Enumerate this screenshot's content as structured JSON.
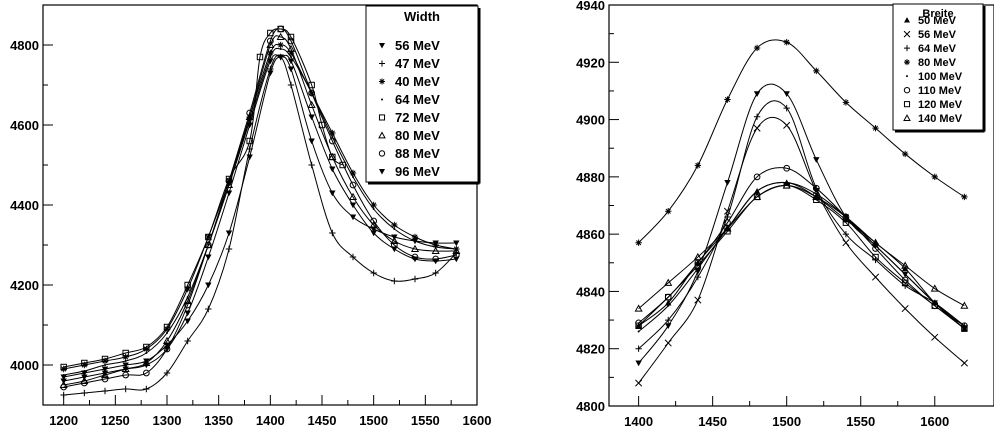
{
  "chart_data": [
    {
      "type": "line",
      "title": "",
      "xlabel": "",
      "ylabel": "",
      "xlim": [
        1180,
        1600
      ],
      "ylim": [
        3900,
        4900
      ],
      "xticks": [
        1200,
        1250,
        1300,
        1350,
        1400,
        1450,
        1500,
        1550,
        1600
      ],
      "yticks": [
        4000,
        4200,
        4400,
        4600,
        4800
      ],
      "legend": {
        "title": "Width",
        "placement": "top-right"
      },
      "series": [
        {
          "name": "56 MeV",
          "marker": "tri-down",
          "x": [
            1200,
            1220,
            1240,
            1260,
            1280,
            1300,
            1320,
            1340,
            1360,
            1380,
            1400,
            1410,
            1420,
            1440,
            1460,
            1480,
            1500,
            1520,
            1540,
            1560,
            1580
          ],
          "y": [
            3970,
            3980,
            3990,
            4000,
            4010,
            4050,
            4110,
            4200,
            4330,
            4520,
            4730,
            4770,
            4740,
            4560,
            4430,
            4370,
            4340,
            4320,
            4310,
            4305,
            4305
          ]
        },
        {
          "name": "47 MeV",
          "marker": "plus",
          "x": [
            1200,
            1220,
            1240,
            1260,
            1280,
            1300,
            1320,
            1340,
            1360,
            1380,
            1400,
            1410,
            1420,
            1440,
            1460,
            1480,
            1500,
            1520,
            1540,
            1560,
            1580
          ],
          "y": [
            3925,
            3930,
            3935,
            3940,
            3940,
            3980,
            4060,
            4140,
            4290,
            4540,
            4740,
            4770,
            4700,
            4500,
            4330,
            4270,
            4230,
            4210,
            4215,
            4230,
            4280
          ]
        },
        {
          "name": "40 MeV",
          "marker": "asterisk",
          "x": [
            1200,
            1220,
            1240,
            1260,
            1280,
            1300,
            1320,
            1340,
            1360,
            1380,
            1400,
            1410,
            1420,
            1440,
            1460,
            1480,
            1500,
            1520,
            1540,
            1560,
            1580
          ],
          "y": [
            3990,
            4000,
            4010,
            4020,
            4040,
            4090,
            4190,
            4320,
            4460,
            4620,
            4780,
            4800,
            4780,
            4680,
            4580,
            4480,
            4400,
            4350,
            4320,
            4300,
            4290
          ]
        },
        {
          "name": "64 MeV",
          "marker": "dot",
          "x": [
            1200,
            1220,
            1240,
            1260,
            1280,
            1300,
            1320,
            1340,
            1360,
            1380,
            1400,
            1410,
            1420,
            1440,
            1460,
            1480,
            1500,
            1520,
            1540,
            1560,
            1580
          ],
          "y": [
            3975,
            3985,
            4000,
            4010,
            4030,
            4080,
            4170,
            4300,
            4450,
            4610,
            4770,
            4790,
            4770,
            4680,
            4570,
            4470,
            4390,
            4340,
            4310,
            4295,
            4290
          ]
        },
        {
          "name": "72 MeV",
          "marker": "square",
          "x": [
            1200,
            1220,
            1240,
            1260,
            1280,
            1300,
            1320,
            1340,
            1360,
            1380,
            1390,
            1400,
            1410,
            1420,
            1440,
            1450,
            1460,
            1470
          ],
          "y": [
            3995,
            4005,
            4015,
            4030,
            4045,
            4095,
            4200,
            4320,
            4465,
            4560,
            4770,
            4830,
            4840,
            4820,
            4700,
            4600,
            4520,
            4500
          ]
        },
        {
          "name": "80 MeV",
          "marker": "triangle",
          "x": [
            1200,
            1220,
            1240,
            1260,
            1280,
            1300,
            1320,
            1340,
            1360,
            1380,
            1400,
            1410,
            1420,
            1440,
            1460,
            1480,
            1500,
            1520,
            1540,
            1560,
            1580
          ],
          "y": [
            3950,
            3960,
            3975,
            3990,
            4005,
            4060,
            4160,
            4300,
            4450,
            4620,
            4800,
            4820,
            4790,
            4650,
            4520,
            4420,
            4350,
            4310,
            4290,
            4285,
            4285
          ]
        },
        {
          "name": "88 MeV",
          "marker": "circle",
          "x": [
            1200,
            1220,
            1240,
            1260,
            1280,
            1300,
            1320,
            1340,
            1360,
            1380,
            1400,
            1410,
            1420,
            1440,
            1460,
            1480,
            1500,
            1520,
            1540,
            1560,
            1580
          ],
          "y": [
            3945,
            3955,
            3965,
            3975,
            3980,
            4040,
            4150,
            4300,
            4460,
            4630,
            4810,
            4840,
            4810,
            4680,
            4560,
            4450,
            4360,
            4300,
            4270,
            4265,
            4275
          ]
        },
        {
          "name": "96 MeV",
          "marker": "tri-down",
          "x": [
            1200,
            1220,
            1240,
            1260,
            1280,
            1300,
            1320,
            1340,
            1360,
            1380,
            1400,
            1410,
            1420,
            1440,
            1460,
            1480,
            1500,
            1520,
            1540,
            1560,
            1580
          ],
          "y": [
            3960,
            3970,
            3980,
            3990,
            4000,
            4040,
            4130,
            4270,
            4430,
            4600,
            4760,
            4770,
            4760,
            4620,
            4490,
            4400,
            4330,
            4290,
            4265,
            4260,
            4265
          ]
        }
      ]
    },
    {
      "type": "line",
      "title": "",
      "xlabel": "",
      "ylabel": "",
      "xlim": [
        1380,
        1640
      ],
      "ylim": [
        4800,
        4940
      ],
      "xticks": [
        1400,
        1450,
        1500,
        1550,
        1600
      ],
      "yticks": [
        4800,
        4820,
        4840,
        4860,
        4880,
        4900,
        4920,
        4940
      ],
      "legend": {
        "title": "Breite",
        "placement": "top-right"
      },
      "series": [
        {
          "name": "50 MeV",
          "marker": "triangle-filled",
          "x": [
            1400,
            1420,
            1440,
            1460,
            1480,
            1500,
            1520,
            1540,
            1560,
            1580,
            1600,
            1620
          ],
          "y": [
            4828,
            4836,
            4850,
            4862,
            4875,
            4878,
            4873,
            4865,
            4857,
            4848,
            4836,
            4827
          ]
        },
        {
          "name": "56 MeV",
          "marker": "cross",
          "x": [
            1400,
            1420,
            1440,
            1460,
            1480,
            1500,
            1520,
            1540,
            1560,
            1580,
            1600,
            1620
          ],
          "y": [
            4808,
            4822,
            4837,
            4868,
            4897,
            4898,
            4875,
            4857,
            4845,
            4834,
            4824,
            4815
          ]
        },
        {
          "name": "64 MeV",
          "marker": "plus",
          "x": [
            1400,
            1420,
            1440,
            1460,
            1480,
            1500,
            1520,
            1540,
            1560,
            1580,
            1600,
            1620
          ],
          "y": [
            4820,
            4830,
            4845,
            4866,
            4901,
            4904,
            4876,
            4860,
            4851,
            4842,
            4836,
            4828
          ]
        },
        {
          "name": "80 MeV",
          "marker": "asterisk",
          "x": [
            1400,
            1420,
            1440,
            1460,
            1480,
            1500,
            1520,
            1540,
            1560,
            1580,
            1600,
            1620
          ],
          "y": [
            4857,
            4868,
            4884,
            4907,
            4925,
            4927,
            4917,
            4906,
            4897,
            4888,
            4880,
            4873
          ]
        },
        {
          "name": "100 MeV",
          "marker": "dot",
          "x": [
            1400,
            1420,
            1440,
            1460,
            1480,
            1500,
            1520,
            1540,
            1560,
            1580,
            1600,
            1620
          ],
          "y": [
            4826,
            4835,
            4848,
            4862,
            4875,
            4878,
            4874,
            4866,
            4856,
            4846,
            4836,
            4828
          ]
        },
        {
          "name": "110 MeV",
          "marker": "circle",
          "x": [
            1400,
            1420,
            1440,
            1460,
            1480,
            1500,
            1520,
            1540,
            1560,
            1580,
            1600,
            1620
          ],
          "y": [
            4829,
            4838,
            4850,
            4864,
            4880,
            4883,
            4876,
            4866,
            4855,
            4844,
            4835,
            4828
          ]
        },
        {
          "name": "120 MeV",
          "marker": "square",
          "x": [
            1400,
            1420,
            1440,
            1460,
            1480,
            1500,
            1520,
            1540,
            1560,
            1580,
            1600,
            1620
          ],
          "y": [
            4828,
            4838,
            4849,
            4861,
            4873,
            4877,
            4872,
            4864,
            4852,
            4843,
            4835,
            4827
          ]
        },
        {
          "name": "140 MeV",
          "marker": "triangle",
          "x": [
            1400,
            1420,
            1440,
            1460,
            1480,
            1500,
            1520,
            1540,
            1560,
            1580,
            1600,
            1620
          ],
          "y": [
            4834,
            4843,
            4852,
            4862,
            4873,
            4877,
            4873,
            4866,
            4857,
            4849,
            4841,
            4835
          ]
        },
        {
          "name": "",
          "marker": "tri-down",
          "x": [
            1400,
            1420,
            1440,
            1460,
            1480,
            1500,
            1520,
            1540,
            1560,
            1580,
            1600,
            1620
          ],
          "y": [
            4815,
            4828,
            4847,
            4878,
            4909,
            4909,
            4886,
            4866,
            4856,
            4846,
            4836,
            4827
          ]
        }
      ]
    }
  ]
}
